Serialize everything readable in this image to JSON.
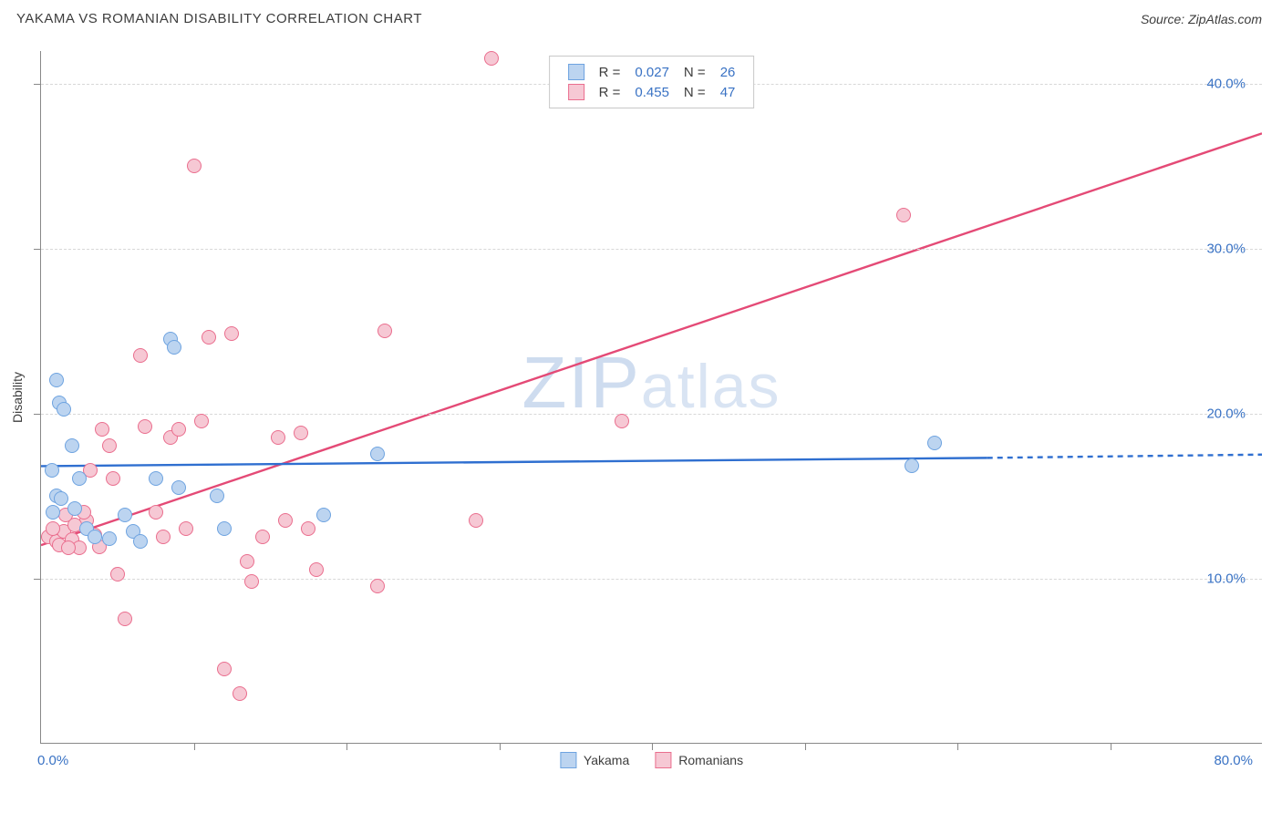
{
  "title": "YAKAMA VS ROMANIAN DISABILITY CORRELATION CHART",
  "source": "Source: ZipAtlas.com",
  "y_axis_label": "Disability",
  "watermark": {
    "part1": "ZIP",
    "part2": "atlas"
  },
  "chart": {
    "type": "scatter",
    "background_color": "#ffffff",
    "grid_color": "#d8d8d8",
    "axis_color": "#888888",
    "xlim": [
      0,
      80
    ],
    "ylim": [
      0,
      42
    ],
    "x_tick_min": "0.0%",
    "x_tick_max": "80.0%",
    "x_tick_positions": [
      10,
      20,
      30,
      40,
      50,
      60,
      70
    ],
    "y_ticks": [
      {
        "v": 10,
        "label": "10.0%"
      },
      {
        "v": 20,
        "label": "20.0%"
      },
      {
        "v": 30,
        "label": "30.0%"
      },
      {
        "v": 40,
        "label": "40.0%"
      }
    ],
    "marker_radius": 8,
    "marker_border_width": 1.5
  },
  "series_a": {
    "name": "Yakama",
    "fill": "#bcd4f0",
    "stroke": "#6ea3e0",
    "r_label": "R =",
    "r_value": "0.027",
    "n_label": "N =",
    "n_value": "26",
    "trend": {
      "x1": 0,
      "y1": 16.8,
      "x2": 62,
      "y2": 17.3,
      "dash_x2": 80,
      "dash_y2": 17.5,
      "color": "#2f6fd0",
      "width": 2.4
    },
    "points": [
      {
        "x": 1.0,
        "y": 22.0
      },
      {
        "x": 1.2,
        "y": 20.6
      },
      {
        "x": 1.5,
        "y": 20.2
      },
      {
        "x": 2.0,
        "y": 18.0
      },
      {
        "x": 2.5,
        "y": 16.0
      },
      {
        "x": 1.0,
        "y": 15.0
      },
      {
        "x": 3.0,
        "y": 13.0
      },
      {
        "x": 3.5,
        "y": 12.5
      },
      {
        "x": 6.0,
        "y": 12.8
      },
      {
        "x": 7.5,
        "y": 16.0
      },
      {
        "x": 8.5,
        "y": 24.5
      },
      {
        "x": 8.7,
        "y": 24.0
      },
      {
        "x": 9.0,
        "y": 15.5
      },
      {
        "x": 11.5,
        "y": 15.0
      },
      {
        "x": 12.0,
        "y": 13.0
      },
      {
        "x": 18.5,
        "y": 13.8
      },
      {
        "x": 22.0,
        "y": 17.5
      },
      {
        "x": 57.0,
        "y": 16.8
      },
      {
        "x": 58.5,
        "y": 18.2
      },
      {
        "x": 0.8,
        "y": 14.0
      },
      {
        "x": 1.3,
        "y": 14.8
      },
      {
        "x": 4.5,
        "y": 12.4
      },
      {
        "x": 5.5,
        "y": 13.8
      },
      {
        "x": 0.7,
        "y": 16.5
      },
      {
        "x": 2.2,
        "y": 14.2
      },
      {
        "x": 6.5,
        "y": 12.2
      }
    ]
  },
  "series_b": {
    "name": "Romanians",
    "fill": "#f6c8d4",
    "stroke": "#ea6e8e",
    "r_label": "R =",
    "r_value": "0.455",
    "n_label": "N =",
    "n_value": "47",
    "trend": {
      "x1": 0,
      "y1": 12.0,
      "x2": 80,
      "y2": 37.0,
      "color": "#e44a76",
      "width": 2.4
    },
    "points": [
      {
        "x": 0.5,
        "y": 12.5
      },
      {
        "x": 1.0,
        "y": 12.2
      },
      {
        "x": 1.5,
        "y": 12.8
      },
      {
        "x": 1.2,
        "y": 12.0
      },
      {
        "x": 2.0,
        "y": 12.3
      },
      {
        "x": 2.5,
        "y": 11.8
      },
      {
        "x": 3.0,
        "y": 13.5
      },
      {
        "x": 3.5,
        "y": 12.6
      },
      {
        "x": 2.8,
        "y": 14.0
      },
      {
        "x": 4.0,
        "y": 19.0
      },
      {
        "x": 4.5,
        "y": 18.0
      },
      {
        "x": 3.2,
        "y": 16.5
      },
      {
        "x": 4.7,
        "y": 16.0
      },
      {
        "x": 5.0,
        "y": 10.2
      },
      {
        "x": 5.5,
        "y": 7.5
      },
      {
        "x": 6.5,
        "y": 23.5
      },
      {
        "x": 6.8,
        "y": 19.2
      },
      {
        "x": 7.5,
        "y": 14.0
      },
      {
        "x": 8.0,
        "y": 12.5
      },
      {
        "x": 8.5,
        "y": 18.5
      },
      {
        "x": 9.5,
        "y": 13.0
      },
      {
        "x": 10.0,
        "y": 35.0
      },
      {
        "x": 10.5,
        "y": 19.5
      },
      {
        "x": 11.0,
        "y": 24.6
      },
      {
        "x": 12.5,
        "y": 24.8
      },
      {
        "x": 12.0,
        "y": 4.5
      },
      {
        "x": 13.0,
        "y": 3.0
      },
      {
        "x": 13.5,
        "y": 11.0
      },
      {
        "x": 14.5,
        "y": 12.5
      },
      {
        "x": 15.5,
        "y": 18.5
      },
      {
        "x": 16.0,
        "y": 13.5
      },
      {
        "x": 17.0,
        "y": 18.8
      },
      {
        "x": 18.0,
        "y": 10.5
      },
      {
        "x": 22.5,
        "y": 25.0
      },
      {
        "x": 22.0,
        "y": 9.5
      },
      {
        "x": 28.5,
        "y": 13.5
      },
      {
        "x": 29.5,
        "y": 41.5
      },
      {
        "x": 38.0,
        "y": 19.5
      },
      {
        "x": 56.5,
        "y": 32.0
      },
      {
        "x": 1.8,
        "y": 11.8
      },
      {
        "x": 2.2,
        "y": 13.2
      },
      {
        "x": 0.8,
        "y": 13.0
      },
      {
        "x": 1.6,
        "y": 13.8
      },
      {
        "x": 3.8,
        "y": 11.9
      },
      {
        "x": 9.0,
        "y": 19.0
      },
      {
        "x": 17.5,
        "y": 13.0
      },
      {
        "x": 13.8,
        "y": 9.8
      }
    ]
  }
}
